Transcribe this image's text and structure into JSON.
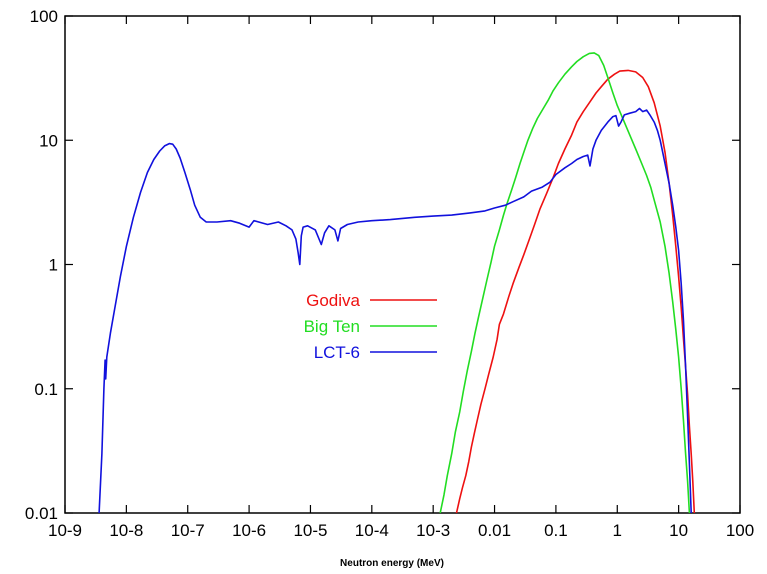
{
  "chart_data": {
    "type": "line",
    "xlabel": "Neutron energy (MeV)",
    "ylabel": "",
    "x_scale": "log",
    "y_scale": "log",
    "xlim": [
      1e-09,
      100
    ],
    "ylim": [
      0.01,
      100
    ],
    "x_ticks": [
      {
        "value": 1e-09,
        "label": "10-9"
      },
      {
        "value": 1e-08,
        "label": "10-8"
      },
      {
        "value": 1e-07,
        "label": "10-7"
      },
      {
        "value": 1e-06,
        "label": "10-6"
      },
      {
        "value": 1e-05,
        "label": "10-5"
      },
      {
        "value": 0.0001,
        "label": "10-4"
      },
      {
        "value": 0.001,
        "label": "10-3"
      },
      {
        "value": 0.01,
        "label": "0.01"
      },
      {
        "value": 0.1,
        "label": "0.1"
      },
      {
        "value": 1,
        "label": "1"
      },
      {
        "value": 10,
        "label": "10"
      },
      {
        "value": 100,
        "label": "100"
      }
    ],
    "y_ticks": [
      {
        "value": 0.01,
        "label": "0.01"
      },
      {
        "value": 0.1,
        "label": "0.1"
      },
      {
        "value": 1,
        "label": "1"
      },
      {
        "value": 10,
        "label": "10"
      },
      {
        "value": 100,
        "label": "100"
      }
    ],
    "grid": false,
    "legend_position": "center",
    "series": [
      {
        "name": "Godiva",
        "color": "#ee1111",
        "points": [
          [
            0.0024,
            0.01
          ],
          [
            0.0027,
            0.013
          ],
          [
            0.003,
            0.016
          ],
          [
            0.0034,
            0.02
          ],
          [
            0.0038,
            0.026
          ],
          [
            0.0042,
            0.034
          ],
          [
            0.0047,
            0.044
          ],
          [
            0.0052,
            0.055
          ],
          [
            0.006,
            0.075
          ],
          [
            0.007,
            0.1
          ],
          [
            0.008,
            0.13
          ],
          [
            0.0095,
            0.18
          ],
          [
            0.011,
            0.25
          ],
          [
            0.012,
            0.33
          ],
          [
            0.014,
            0.4
          ],
          [
            0.017,
            0.55
          ],
          [
            0.02,
            0.7
          ],
          [
            0.025,
            0.95
          ],
          [
            0.03,
            1.2
          ],
          [
            0.037,
            1.6
          ],
          [
            0.045,
            2.1
          ],
          [
            0.055,
            2.8
          ],
          [
            0.07,
            3.7
          ],
          [
            0.09,
            5.0
          ],
          [
            0.11,
            6.5
          ],
          [
            0.14,
            8.5
          ],
          [
            0.18,
            11
          ],
          [
            0.22,
            14
          ],
          [
            0.28,
            17
          ],
          [
            0.35,
            20
          ],
          [
            0.45,
            24
          ],
          [
            0.55,
            27
          ],
          [
            0.7,
            31
          ],
          [
            0.9,
            34
          ],
          [
            1.1,
            36
          ],
          [
            1.5,
            36.5
          ],
          [
            2.0,
            35.5
          ],
          [
            2.6,
            32
          ],
          [
            3.2,
            27
          ],
          [
            4.0,
            20
          ],
          [
            5.0,
            13
          ],
          [
            6.0,
            8
          ],
          [
            7.0,
            4.5
          ],
          [
            8.0,
            2.5
          ],
          [
            9.0,
            1.4
          ],
          [
            10.0,
            0.8
          ],
          [
            11.0,
            0.45
          ],
          [
            12.0,
            0.25
          ],
          [
            13.0,
            0.15
          ],
          [
            14.0,
            0.09
          ],
          [
            15.0,
            0.05
          ],
          [
            16.0,
            0.03
          ],
          [
            17.0,
            0.018
          ],
          [
            18.0,
            0.01
          ]
        ]
      },
      {
        "name": "Big Ten",
        "color": "#22dd22",
        "points": [
          [
            0.0013,
            0.01
          ],
          [
            0.0015,
            0.014
          ],
          [
            0.0017,
            0.02
          ],
          [
            0.002,
            0.03
          ],
          [
            0.0023,
            0.045
          ],
          [
            0.0027,
            0.065
          ],
          [
            0.0031,
            0.095
          ],
          [
            0.0036,
            0.14
          ],
          [
            0.0042,
            0.2
          ],
          [
            0.0048,
            0.28
          ],
          [
            0.0055,
            0.38
          ],
          [
            0.0065,
            0.55
          ],
          [
            0.0075,
            0.75
          ],
          [
            0.0088,
            1.05
          ],
          [
            0.01,
            1.4
          ],
          [
            0.012,
            1.9
          ],
          [
            0.014,
            2.5
          ],
          [
            0.016,
            3.1
          ],
          [
            0.019,
            4.0
          ],
          [
            0.022,
            5.0
          ],
          [
            0.026,
            6.5
          ],
          [
            0.03,
            8.0
          ],
          [
            0.035,
            10
          ],
          [
            0.042,
            12.5
          ],
          [
            0.05,
            15
          ],
          [
            0.06,
            17.5
          ],
          [
            0.075,
            21
          ],
          [
            0.09,
            25
          ],
          [
            0.11,
            29
          ],
          [
            0.14,
            34
          ],
          [
            0.18,
            39
          ],
          [
            0.22,
            43
          ],
          [
            0.28,
            47
          ],
          [
            0.35,
            50
          ],
          [
            0.42,
            50.5
          ],
          [
            0.5,
            48
          ],
          [
            0.6,
            40
          ],
          [
            0.7,
            32
          ],
          [
            0.85,
            24
          ],
          [
            1.0,
            19
          ],
          [
            1.3,
            14
          ],
          [
            1.6,
            11
          ],
          [
            2.0,
            8.5
          ],
          [
            2.5,
            6.5
          ],
          [
            3.0,
            5.2
          ],
          [
            3.5,
            4.2
          ],
          [
            4.0,
            3.3
          ],
          [
            5.0,
            2.2
          ],
          [
            6.0,
            1.4
          ],
          [
            7.0,
            0.85
          ],
          [
            8.0,
            0.5
          ],
          [
            9.0,
            0.3
          ],
          [
            10.0,
            0.18
          ],
          [
            11.0,
            0.1
          ],
          [
            12.0,
            0.055
          ],
          [
            13.0,
            0.03
          ],
          [
            14.0,
            0.018
          ],
          [
            15.0,
            0.01
          ]
        ]
      },
      {
        "name": "LCT-6",
        "color": "#1111dd",
        "points": [
          [
            3.6e-09,
            0.01
          ],
          [
            4e-09,
            0.03
          ],
          [
            4.3e-09,
            0.1
          ],
          [
            4.5e-09,
            0.17
          ],
          [
            4.6e-09,
            0.12
          ],
          [
            4.8e-09,
            0.18
          ],
          [
            5.5e-09,
            0.28
          ],
          [
            6.5e-09,
            0.45
          ],
          [
            8e-09,
            0.8
          ],
          [
            1e-08,
            1.4
          ],
          [
            1.3e-08,
            2.4
          ],
          [
            1.7e-08,
            3.8
          ],
          [
            2.2e-08,
            5.5
          ],
          [
            2.8e-08,
            7.0
          ],
          [
            3.5e-08,
            8.2
          ],
          [
            4.2e-08,
            9.0
          ],
          [
            5e-08,
            9.4
          ],
          [
            5.7e-08,
            9.3
          ],
          [
            6.5e-08,
            8.5
          ],
          [
            7.5e-08,
            7.2
          ],
          [
            9e-08,
            5.5
          ],
          [
            1.1e-07,
            4.0
          ],
          [
            1.3e-07,
            3.0
          ],
          [
            1.6e-07,
            2.4
          ],
          [
            2e-07,
            2.2
          ],
          [
            3e-07,
            2.2
          ],
          [
            5e-07,
            2.25
          ],
          [
            7e-07,
            2.15
          ],
          [
            1e-06,
            2.0
          ],
          [
            1.2e-06,
            2.25
          ],
          [
            2e-06,
            2.1
          ],
          [
            3e-06,
            2.2
          ],
          [
            4e-06,
            2.05
          ],
          [
            5e-06,
            1.9
          ],
          [
            5.8e-06,
            1.6
          ],
          [
            6.3e-06,
            1.25
          ],
          [
            6.7e-06,
            1.0
          ],
          [
            7.1e-06,
            1.7
          ],
          [
            7.6e-06,
            2.0
          ],
          [
            9e-06,
            2.05
          ],
          [
            1.2e-05,
            1.9
          ],
          [
            1.5e-05,
            1.45
          ],
          [
            1.7e-05,
            1.8
          ],
          [
            2e-05,
            2.05
          ],
          [
            2.5e-05,
            1.9
          ],
          [
            2.8e-05,
            1.55
          ],
          [
            3.1e-05,
            1.95
          ],
          [
            4e-05,
            2.1
          ],
          [
            6e-05,
            2.2
          ],
          [
            0.0001,
            2.25
          ],
          [
            0.0002,
            2.3
          ],
          [
            0.0005,
            2.4
          ],
          [
            0.001,
            2.45
          ],
          [
            0.002,
            2.5
          ],
          [
            0.004,
            2.6
          ],
          [
            0.007,
            2.7
          ],
          [
            0.01,
            2.85
          ],
          [
            0.015,
            3.0
          ],
          [
            0.02,
            3.2
          ],
          [
            0.03,
            3.5
          ],
          [
            0.04,
            3.9
          ],
          [
            0.06,
            4.2
          ],
          [
            0.08,
            4.6
          ],
          [
            0.1,
            5.3
          ],
          [
            0.14,
            6.0
          ],
          [
            0.18,
            6.5
          ],
          [
            0.22,
            7.0
          ],
          [
            0.28,
            7.4
          ],
          [
            0.33,
            7.6
          ],
          [
            0.36,
            6.2
          ],
          [
            0.4,
            8.5
          ],
          [
            0.45,
            10
          ],
          [
            0.55,
            12
          ],
          [
            0.7,
            14
          ],
          [
            0.85,
            15.5
          ],
          [
            0.95,
            15.8
          ],
          [
            1.05,
            13
          ],
          [
            1.15,
            14
          ],
          [
            1.3,
            16
          ],
          [
            1.6,
            16.5
          ],
          [
            2.0,
            17
          ],
          [
            2.3,
            18
          ],
          [
            2.6,
            17
          ],
          [
            3.0,
            17.5
          ],
          [
            3.4,
            16
          ],
          [
            4.0,
            14
          ],
          [
            4.5,
            12
          ],
          [
            5.0,
            10
          ],
          [
            5.5,
            8
          ],
          [
            6.0,
            6.5
          ],
          [
            7.0,
            4.5
          ],
          [
            8.0,
            3.0
          ],
          [
            9.0,
            2.0
          ],
          [
            10.0,
            1.3
          ],
          [
            11.0,
            0.7
          ],
          [
            12.0,
            0.35
          ],
          [
            13.0,
            0.15
          ],
          [
            14.0,
            0.06
          ],
          [
            15.0,
            0.025
          ],
          [
            16.0,
            0.01
          ]
        ]
      }
    ]
  }
}
